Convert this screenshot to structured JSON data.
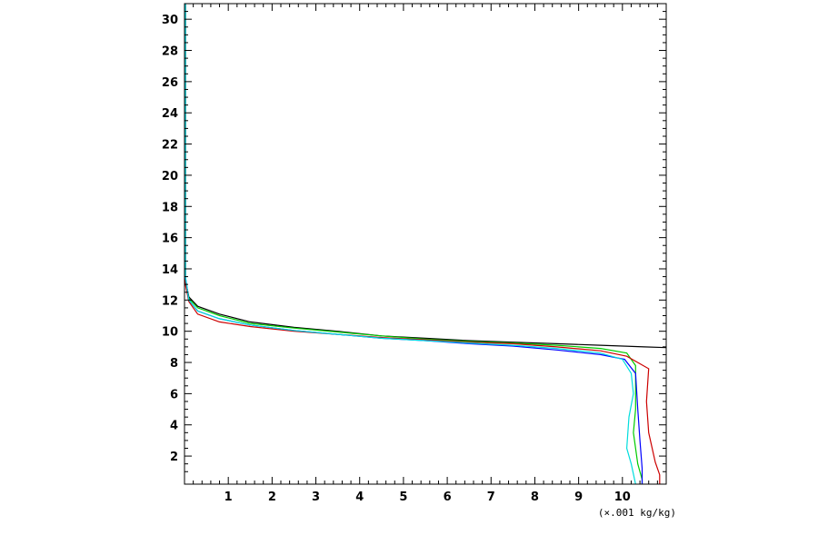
{
  "chart_data": {
    "type": "line",
    "title": "",
    "xlabel": "(×.001 kg/kg)",
    "ylabel": "",
    "xlim": [
      0,
      11
    ],
    "ylim": [
      0.2,
      31
    ],
    "xticks": [
      1,
      2,
      3,
      4,
      5,
      6,
      7,
      8,
      9,
      10
    ],
    "yticks": [
      2,
      4,
      6,
      8,
      10,
      12,
      14,
      16,
      18,
      20,
      22,
      24,
      26,
      28,
      30
    ],
    "grid": false,
    "series": [
      {
        "color": "#000000",
        "points": [
          [
            0.02,
            31
          ],
          [
            0.02,
            13.3
          ],
          [
            0.1,
            12.2
          ],
          [
            0.3,
            11.6
          ],
          [
            0.8,
            11.1
          ],
          [
            1.5,
            10.6
          ],
          [
            2.5,
            10.25
          ],
          [
            3.5,
            10.0
          ],
          [
            4.5,
            9.7
          ],
          [
            5.5,
            9.55
          ],
          [
            6.5,
            9.4
          ],
          [
            7.5,
            9.3
          ],
          [
            8.5,
            9.2
          ],
          [
            9.5,
            9.1
          ],
          [
            10.5,
            9.0
          ],
          [
            11.0,
            8.95
          ]
        ]
      },
      {
        "color": "#00cc00",
        "points": [
          [
            0.02,
            31
          ],
          [
            0.02,
            13.3
          ],
          [
            0.1,
            12.1
          ],
          [
            0.3,
            11.5
          ],
          [
            0.8,
            11.0
          ],
          [
            1.5,
            10.5
          ],
          [
            2.5,
            10.2
          ],
          [
            3.5,
            9.95
          ],
          [
            4.5,
            9.7
          ],
          [
            5.5,
            9.5
          ],
          [
            6.5,
            9.35
          ],
          [
            7.5,
            9.25
          ],
          [
            8.5,
            9.1
          ],
          [
            9.5,
            8.9
          ],
          [
            10.1,
            8.6
          ],
          [
            10.3,
            7.8
          ],
          [
            10.3,
            5.0
          ],
          [
            10.25,
            3.5
          ],
          [
            10.35,
            1.5
          ],
          [
            10.45,
            0.5
          ],
          [
            10.45,
            0.2
          ]
        ]
      },
      {
        "color": "#cc0000",
        "points": [
          [
            0.02,
            31
          ],
          [
            0.02,
            13.0
          ],
          [
            0.1,
            11.9
          ],
          [
            0.3,
            11.1
          ],
          [
            0.8,
            10.6
          ],
          [
            1.5,
            10.3
          ],
          [
            2.5,
            10.0
          ],
          [
            3.5,
            9.8
          ],
          [
            4.5,
            9.6
          ],
          [
            5.5,
            9.45
          ],
          [
            6.5,
            9.3
          ],
          [
            7.5,
            9.2
          ],
          [
            8.5,
            9.0
          ],
          [
            9.5,
            8.75
          ],
          [
            10.1,
            8.4
          ],
          [
            10.6,
            7.6
          ],
          [
            10.55,
            5.5
          ],
          [
            10.6,
            3.5
          ],
          [
            10.75,
            1.6
          ],
          [
            10.85,
            0.8
          ],
          [
            10.85,
            0.2
          ]
        ]
      },
      {
        "color": "#0000ff",
        "points": [
          [
            0.02,
            31
          ],
          [
            0.02,
            13.5
          ],
          [
            0.1,
            12.0
          ],
          [
            0.3,
            11.3
          ],
          [
            0.8,
            10.8
          ],
          [
            1.5,
            10.4
          ],
          [
            2.5,
            10.05
          ],
          [
            3.5,
            9.8
          ],
          [
            4.5,
            9.55
          ],
          [
            5.5,
            9.4
          ],
          [
            6.5,
            9.2
          ],
          [
            7.5,
            9.05
          ],
          [
            8.5,
            8.8
          ],
          [
            9.5,
            8.5
          ],
          [
            10.05,
            8.2
          ],
          [
            10.3,
            7.3
          ],
          [
            10.35,
            5.0
          ],
          [
            10.4,
            3.0
          ],
          [
            10.45,
            1.2
          ],
          [
            10.45,
            0.2
          ]
        ]
      },
      {
        "color": "#00dddd",
        "points": [
          [
            0.02,
            31
          ],
          [
            0.02,
            13.5
          ],
          [
            0.1,
            12.0
          ],
          [
            0.3,
            11.3
          ],
          [
            0.8,
            10.8
          ],
          [
            1.5,
            10.4
          ],
          [
            2.5,
            10.05
          ],
          [
            3.5,
            9.8
          ],
          [
            4.5,
            9.55
          ],
          [
            5.5,
            9.4
          ],
          [
            6.5,
            9.25
          ],
          [
            7.5,
            9.1
          ],
          [
            8.5,
            8.9
          ],
          [
            9.5,
            8.6
          ],
          [
            10.0,
            8.2
          ],
          [
            10.2,
            7.3
          ],
          [
            10.25,
            6.0
          ],
          [
            10.15,
            4.5
          ],
          [
            10.1,
            2.5
          ],
          [
            10.2,
            1.5
          ],
          [
            10.3,
            0.2
          ]
        ]
      }
    ]
  }
}
